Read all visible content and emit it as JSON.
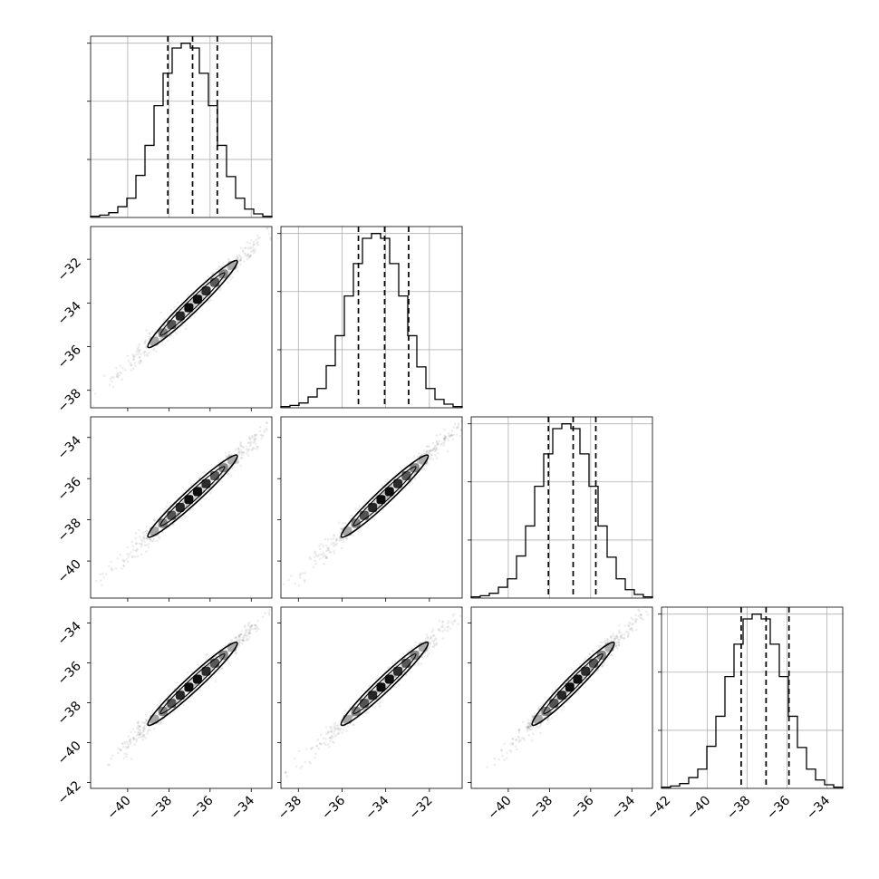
{
  "chart_data": {
    "type": "corner",
    "n_params": 4,
    "colors": {
      "line": "#000000",
      "grid": "#b0b0b0",
      "points": "#000000"
    },
    "grid": true,
    "quantiles": [
      0.16,
      0.5,
      0.84
    ],
    "params": [
      {
        "range": [
          -41.8,
          -33.0
        ],
        "ticks": [
          -40,
          -38,
          -36,
          -34
        ],
        "tick_labels": [
          "−40",
          "−38",
          "−36",
          "−34"
        ],
        "median": -36.85,
        "q16": -38.05,
        "q84": -35.65
      },
      {
        "range": [
          -38.8,
          -30.5
        ],
        "ticks": [
          -38,
          -36,
          -34,
          -32
        ],
        "tick_labels": [
          "−38",
          "−36",
          "−34",
          "−32"
        ],
        "median": -34.05,
        "q16": -35.25,
        "q84": -32.95
      },
      {
        "range": [
          -41.8,
          -33.0
        ],
        "ticks": [
          -40,
          -38,
          -36,
          -34
        ],
        "tick_labels": [
          "−40",
          "−38",
          "−36",
          "−34"
        ],
        "median": -36.85,
        "q16": -38.05,
        "q84": -35.75
      },
      {
        "range": [
          -42.3,
          -33.2
        ],
        "ticks": [
          -42,
          -40,
          -38,
          -36,
          -34
        ],
        "tick_labels": [
          "−42",
          "−40",
          "−38",
          "−36",
          "−34"
        ],
        "median": -37.05,
        "q16": -38.3,
        "q84": -35.9
      }
    ],
    "histograms": [
      {
        "param": 0,
        "bin_edges": [
          -41.8,
          -41.36,
          -40.92,
          -40.48,
          -40.04,
          -39.6,
          -39.16,
          -38.72,
          -38.28,
          -37.84,
          -37.4,
          -36.96,
          -36.52,
          -36.08,
          -35.64,
          -35.2,
          -34.76,
          -34.32,
          -33.88,
          -33.44,
          -33.0
        ],
        "counts": [
          1,
          2,
          4,
          9,
          16,
          35,
          60,
          93,
          120,
          141,
          145,
          141,
          120,
          93,
          60,
          34,
          16,
          7,
          3,
          1
        ]
      },
      {
        "param": 1,
        "bin_edges": [
          -38.8,
          -38.385,
          -37.97,
          -37.555,
          -37.14,
          -36.725,
          -36.31,
          -35.895,
          -35.48,
          -35.065,
          -34.65,
          -34.235,
          -33.82,
          -33.405,
          -32.99,
          -32.575,
          -32.16,
          -31.745,
          -31.33,
          -30.915,
          -30.5
        ],
        "counts": [
          1,
          2,
          4,
          9,
          16,
          35,
          60,
          93,
          120,
          141,
          145,
          141,
          120,
          93,
          60,
          34,
          16,
          7,
          3,
          1
        ]
      },
      {
        "param": 2,
        "bin_edges": [
          -41.8,
          -41.36,
          -40.92,
          -40.48,
          -40.04,
          -39.6,
          -39.16,
          -38.72,
          -38.28,
          -37.84,
          -37.4,
          -36.96,
          -36.52,
          -36.08,
          -35.64,
          -35.2,
          -34.76,
          -34.32,
          -33.88,
          -33.44,
          -33.0
        ],
        "counts": [
          1,
          2,
          4,
          9,
          16,
          35,
          60,
          93,
          120,
          141,
          145,
          141,
          120,
          93,
          60,
          34,
          16,
          7,
          3,
          1
        ]
      },
      {
        "param": 3,
        "bin_edges": [
          -42.3,
          -41.845,
          -41.39,
          -40.935,
          -40.48,
          -40.025,
          -39.57,
          -39.115,
          -38.66,
          -38.205,
          -37.75,
          -37.295,
          -36.84,
          -36.385,
          -35.93,
          -35.475,
          -35.02,
          -34.565,
          -34.11,
          -33.655,
          -33.2
        ],
        "counts": [
          1,
          2,
          4,
          9,
          16,
          35,
          60,
          93,
          120,
          141,
          145,
          141,
          120,
          93,
          60,
          34,
          16,
          7,
          3,
          1
        ]
      }
    ],
    "hist_yticks": [
      0.333,
      0.667,
      1.0
    ],
    "scatter": {
      "description_free": true,
      "pairs": [
        [
          1,
          0
        ],
        [
          2,
          0
        ],
        [
          2,
          1
        ],
        [
          3,
          0
        ],
        [
          3,
          1
        ],
        [
          3,
          2
        ]
      ]
    }
  }
}
